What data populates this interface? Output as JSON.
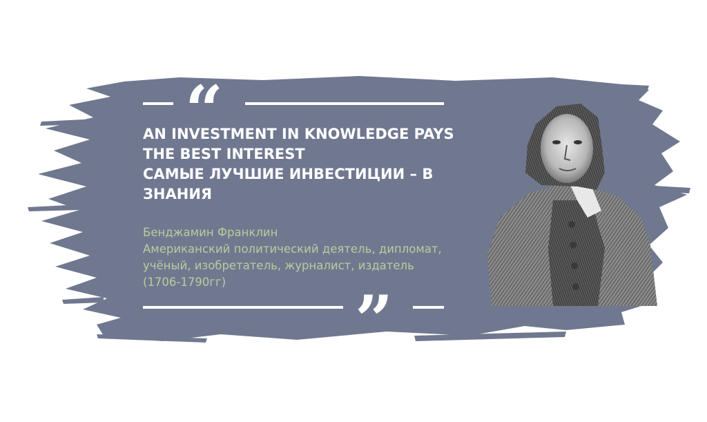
{
  "quote": {
    "english_line_1": "AN INVESTMENT IN KNOWLEDGE PAYS",
    "english_line_2": "THE BEST INTEREST",
    "russian_line_1": "САМЫЕ ЛУЧШИЕ ИНВЕСТИЦИИ – В",
    "russian_line_2": "ЗНАНИЯ"
  },
  "author": {
    "name": "Бенджамин Франклин",
    "bio_line_1": "Американский политический деятель, дипломат,",
    "bio_line_2": "учёный, изобретатель, журналист, издатель",
    "years": "(1706-1790гг)"
  },
  "colors": {
    "background": "#ffffff",
    "brush_stroke": "#707890",
    "quote_text": "#ffffff",
    "author_text": "#b9cc9e"
  },
  "icons": {
    "open_quote": "opening-quotation-mark-icon",
    "close_quote": "closing-quotation-mark-icon",
    "portrait": "engraved-portrait-image"
  }
}
